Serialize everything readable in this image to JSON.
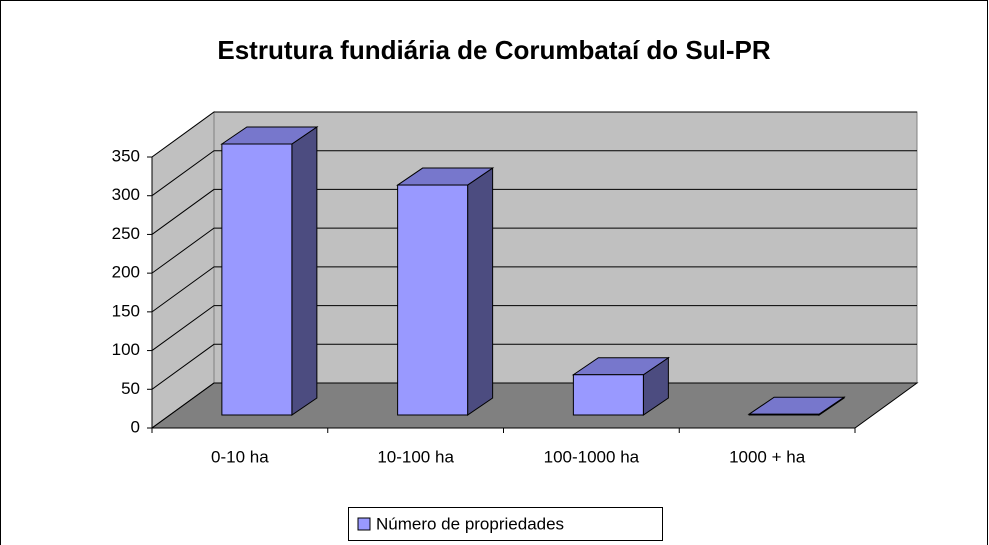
{
  "chart_data": {
    "type": "bar3d",
    "title": "Estrutura fundiária de Corumbataí do Sul-PR",
    "categories": [
      "0-10 ha",
      "10-100 ha",
      "100-1000 ha",
      "1000 + ha"
    ],
    "series": [
      {
        "name": "Número de propriedades",
        "color": "#9999ff",
        "values": [
          350,
          297,
          52,
          1
        ]
      }
    ],
    "ylim": [
      0,
      350
    ],
    "yticks": [
      0,
      50,
      100,
      150,
      200,
      250,
      300,
      350
    ],
    "grid": true,
    "legend": "bottom"
  }
}
